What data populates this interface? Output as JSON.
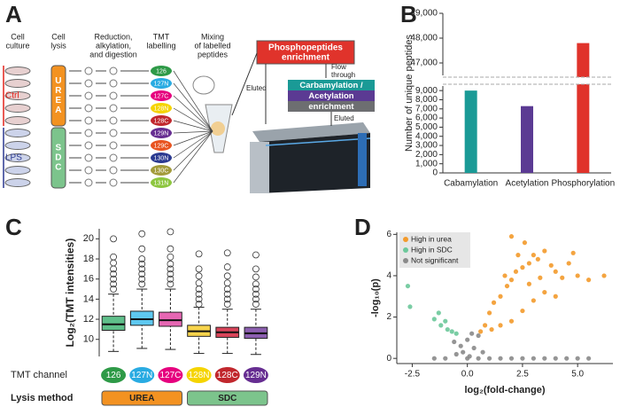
{
  "panels": [
    "A",
    "B",
    "C",
    "D"
  ],
  "diagram": {
    "steps": [
      [
        "Cell",
        "culture"
      ],
      [
        "Cell",
        "lysis"
      ],
      [
        "Reduction,",
        "alkylation,",
        "and digestion"
      ],
      [
        "TMT",
        "labelling"
      ],
      [
        "Mixing",
        "of labelled",
        "peptides"
      ]
    ],
    "groups": [
      {
        "label": "Ctrl",
        "color": "#e2231a"
      },
      {
        "label": "LPS",
        "color": "#2b3990"
      }
    ],
    "buffers": [
      {
        "label": "UREA",
        "color": "#f39221"
      },
      {
        "label": "SDC",
        "color": "#7cc48c"
      }
    ],
    "tags": [
      {
        "label": "126",
        "color": "#2e9a47"
      },
      {
        "label": "127N",
        "color": "#29abe2"
      },
      {
        "label": "127C",
        "color": "#e6007e"
      },
      {
        "label": "128N",
        "color": "#f5d400"
      },
      {
        "label": "128C",
        "color": "#c1272d"
      },
      {
        "label": "129N",
        "color": "#662d91"
      },
      {
        "label": "129C",
        "color": "#e8531f"
      },
      {
        "label": "130N",
        "color": "#2b3990"
      },
      {
        "label": "130C",
        "color": "#a39b3b"
      },
      {
        "label": "131N",
        "color": "#8dc63f"
      }
    ],
    "phospho_box": [
      "Phosphopeptides",
      "enrichment"
    ],
    "mod_box": [
      "Carbamylation /",
      "Acetylation",
      "enrichment"
    ],
    "flow": [
      "Flow",
      "through"
    ],
    "eluted": [
      "Eluted",
      "Eluted"
    ]
  },
  "chart_data": [
    {
      "type": "bar",
      "ylabel": "Number of unique peptides",
      "categories": [
        "Cabamylation",
        "Acetylation",
        "Phosphorylation"
      ],
      "values": [
        9000,
        7300,
        47800
      ],
      "colors": [
        "#1a9a96",
        "#5b3a93",
        "#e0332b"
      ],
      "ylim": [
        0,
        49000
      ],
      "axis_break": [
        9500,
        46500
      ],
      "yticks": [
        0,
        {
          "value": 1000,
          "label": "1,000"
        },
        {
          "value": 2000,
          "label": "2,000"
        },
        {
          "value": 3000,
          "label": "3,000"
        },
        {
          "value": 4000,
          "label": "4,000"
        },
        {
          "value": 5000,
          "label": "5,000"
        },
        {
          "value": 6000,
          "label": "6,000"
        },
        {
          "value": 7000,
          "label": "7,000"
        },
        {
          "value": 8000,
          "label": "8,000"
        },
        {
          "value": 9000,
          "label": "9,000"
        },
        {
          "value": 47000,
          "label": "47,000"
        },
        {
          "value": 48000,
          "label": "48,000"
        },
        {
          "value": 49000,
          "label": "49,000"
        }
      ]
    },
    {
      "type": "box",
      "ylabel": "Log₂(TMT intensities)",
      "xlabel": "TMT channel",
      "lysis_label": "Lysis method",
      "categories": [
        "126",
        "127N",
        "127C",
        "128N",
        "128C",
        "129N"
      ],
      "colors": [
        "#5fbf8a",
        "#5ec8f0",
        "#e667b3",
        "#f7d44c",
        "#d9455a",
        "#8c5fb0"
      ],
      "tag_colors": [
        "#2e9a47",
        "#29abe2",
        "#e6007e",
        "#f5d400",
        "#c1272d",
        "#662d91"
      ],
      "lysis": [
        {
          "label": "UREA",
          "color": "#f39221"
        },
        {
          "label": "SDC",
          "color": "#7cc48c"
        }
      ],
      "min": [
        8.8,
        9.1,
        9.0,
        8.6,
        8.6,
        8.5
      ],
      "q1": [
        10.9,
        11.4,
        11.3,
        10.3,
        10.2,
        10.1
      ],
      "median": [
        11.5,
        12.0,
        11.9,
        10.8,
        10.7,
        10.6
      ],
      "q3": [
        12.3,
        12.8,
        12.7,
        11.4,
        11.2,
        11.2
      ],
      "max": [
        14.5,
        15.0,
        15.0,
        13.2,
        13.0,
        13.0
      ],
      "outliers": [
        [
          15,
          15.5,
          16,
          16.5,
          17,
          17.6,
          18.2,
          20
        ],
        [
          15.5,
          16,
          16.5,
          17,
          17.5,
          18,
          19,
          20.5
        ],
        [
          15.5,
          16,
          16.5,
          17,
          17.5,
          18.2,
          19,
          20.7
        ],
        [
          13.5,
          14,
          14.5,
          15,
          15.6,
          16.3,
          17,
          18.5
        ],
        [
          13.5,
          14,
          14.5,
          15,
          15.6,
          16.3,
          17.2,
          18.6
        ],
        [
          13.5,
          14,
          14.5,
          15,
          15.5,
          16.2,
          17,
          18.4
        ]
      ],
      "ylim": [
        8.3,
        21
      ],
      "yticks": [
        10,
        12,
        14,
        16,
        18,
        20
      ]
    },
    {
      "type": "scatter",
      "xlabel": "log₂(fold-change)",
      "ylabel": "-log₁₀(p)",
      "legend": "top-left",
      "xlim": [
        -3.2,
        6.6
      ],
      "ylim": [
        -0.25,
        6.1
      ],
      "xticks": [
        -2.5,
        {
          "value": 0,
          "label": "0.0"
        },
        2.5,
        {
          "value": 5,
          "label": "5.0"
        }
      ],
      "yticks": [
        0,
        2,
        4,
        6
      ],
      "series": [
        {
          "name": "High in urea",
          "color": "#f39a2b",
          "x": [
            0.8,
            1.0,
            1.2,
            1.5,
            1.8,
            2.0,
            2.2,
            2.5,
            2.8,
            3.0,
            3.2,
            3.5,
            2.6,
            2.0,
            3.8,
            4.0,
            4.3,
            4.6,
            5.0,
            5.5,
            6.2,
            1.5,
            2.0,
            2.5,
            3.0,
            3.5,
            4.0,
            1.1,
            2.8,
            1.7,
            2.3,
            3.3,
            4.8,
            0.6
          ],
          "values": [
            1.6,
            2.2,
            2.7,
            3.0,
            3.5,
            3.8,
            4.2,
            4.4,
            4.6,
            5.0,
            4.8,
            5.2,
            5.6,
            5.9,
            4.5,
            4.2,
            3.9,
            4.6,
            4.0,
            3.8,
            4.0,
            1.6,
            1.8,
            2.3,
            2.8,
            3.2,
            3.0,
            1.4,
            3.6,
            4.0,
            5.0,
            3.9,
            5.1,
            1.3
          ]
        },
        {
          "name": "High in SDC",
          "color": "#6cc89a",
          "x": [
            -2.7,
            -2.6,
            -1.5,
            -1.2,
            -1.0,
            -0.9,
            -0.7,
            -1.3,
            -0.5
          ],
          "values": [
            3.5,
            2.5,
            1.9,
            1.6,
            1.8,
            1.4,
            1.3,
            2.2,
            1.2
          ]
        },
        {
          "name": "Not significant",
          "color": "#8a8a8a",
          "x": [
            -1.5,
            -1.0,
            -0.5,
            0,
            0.5,
            1.0,
            1.5,
            2.0,
            2.5,
            3.0,
            3.5,
            4.0,
            4.5,
            5.0,
            5.5,
            -0.3,
            0,
            0.3,
            0.5,
            -0.6,
            0.2,
            0.7,
            -0.2,
            0.1
          ],
          "values": [
            0,
            0,
            0.2,
            0,
            0,
            0,
            0,
            0,
            0,
            0,
            0,
            0,
            0,
            0,
            0,
            0.6,
            0.9,
            0.5,
            1.1,
            0.8,
            1.2,
            0.3,
            0.3,
            0.1
          ]
        }
      ]
    }
  ]
}
